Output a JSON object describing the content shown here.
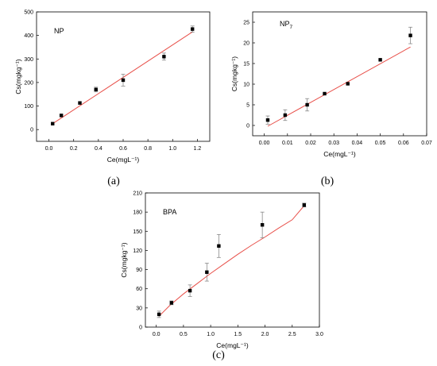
{
  "colors": {
    "fit_line": "#e8504a",
    "marker": "#000000",
    "errorbar": "#7a7a7a",
    "frame": "#000000"
  },
  "chart_data": [
    {
      "type": "scatter",
      "caption": "(a)",
      "panel_label": "NP",
      "panel_label_sub": "",
      "xlabel": "Ce(mgL⁻¹)",
      "ylabel": "Cs(mgkg⁻¹)",
      "xlim": [
        -0.1,
        1.3
      ],
      "ylim": [
        -50,
        500
      ],
      "xticks": [
        0.0,
        0.2,
        0.4,
        0.6,
        0.8,
        1.0,
        1.2
      ],
      "xtick_labels": [
        "0.0",
        "0.2",
        "0.4",
        "0.6",
        "0.8",
        "1.0",
        "1.2"
      ],
      "yticks": [
        0,
        100,
        200,
        300,
        400,
        500
      ],
      "ytick_labels": [
        "0",
        "100",
        "200",
        "300",
        "400",
        "500"
      ],
      "grid": false,
      "points": [
        {
          "x": 0.03,
          "y": 25,
          "err": 0
        },
        {
          "x": 0.1,
          "y": 60,
          "err": 0
        },
        {
          "x": 0.25,
          "y": 113,
          "err": 0
        },
        {
          "x": 0.38,
          "y": 170,
          "err": 10
        },
        {
          "x": 0.6,
          "y": 210,
          "err": 25
        },
        {
          "x": 0.93,
          "y": 310,
          "err": 15
        },
        {
          "x": 1.16,
          "y": 427,
          "err": 13
        }
      ],
      "fit": {
        "x": [
          0.03,
          1.16
        ],
        "y": [
          25,
          415
        ]
      }
    },
    {
      "type": "scatter",
      "caption": "(b)",
      "panel_label": "NP",
      "panel_label_sub": "7",
      "xlabel": "Ce(mgL⁻¹)",
      "ylabel": "Cs(mgkg⁻¹)",
      "xlim": [
        -0.005,
        0.07
      ],
      "ylim": [
        -2.5,
        27.5
      ],
      "xticks": [
        0.0,
        0.01,
        0.02,
        0.03,
        0.04,
        0.05,
        0.06,
        0.07
      ],
      "xtick_labels": [
        "0.00",
        "0.01",
        "0.02",
        "0.03",
        "0.04",
        "0.05",
        "0.06",
        "0.07"
      ],
      "yticks": [
        0,
        5,
        10,
        15,
        20,
        25
      ],
      "ytick_labels": [
        "0",
        "5",
        "10",
        "15",
        "20",
        "25"
      ],
      "grid": false,
      "points": [
        {
          "x": 0.0015,
          "y": 1.3,
          "err": 1.0
        },
        {
          "x": 0.009,
          "y": 2.5,
          "err": 1.3
        },
        {
          "x": 0.0185,
          "y": 5.0,
          "err": 1.5
        },
        {
          "x": 0.026,
          "y": 7.7,
          "err": 0
        },
        {
          "x": 0.036,
          "y": 10.1,
          "err": 0
        },
        {
          "x": 0.05,
          "y": 15.9,
          "err": 0
        },
        {
          "x": 0.063,
          "y": 21.8,
          "err": 2.0
        }
      ],
      "fit": {
        "x": [
          0.0015,
          0.063
        ],
        "y": [
          -0.2,
          19.0
        ]
      }
    },
    {
      "type": "scatter",
      "caption": "(c)",
      "panel_label": "BPA",
      "panel_label_sub": "",
      "xlabel": "Ce(mgL⁻¹)",
      "ylabel": "Cs(mgkg⁻¹)",
      "xlim": [
        -0.2,
        3.0
      ],
      "ylim": [
        0,
        210
      ],
      "xticks": [
        0.0,
        0.5,
        1.0,
        1.5,
        2.0,
        2.5,
        3.0
      ],
      "xtick_labels": [
        "0.0",
        "0.5",
        "1.0",
        "1.5",
        "2.0",
        "2.5",
        "3.0"
      ],
      "yticks": [
        0,
        30,
        60,
        90,
        120,
        150,
        180,
        210
      ],
      "ytick_labels": [
        "0",
        "30",
        "60",
        "90",
        "120",
        "150",
        "180",
        "210"
      ],
      "grid": false,
      "points": [
        {
          "x": 0.05,
          "y": 20,
          "err": 5
        },
        {
          "x": 0.28,
          "y": 38,
          "err": 3
        },
        {
          "x": 0.62,
          "y": 57,
          "err": 9
        },
        {
          "x": 0.93,
          "y": 86,
          "err": 14
        },
        {
          "x": 1.15,
          "y": 127,
          "err": 18
        },
        {
          "x": 1.95,
          "y": 160,
          "err": 20
        },
        {
          "x": 2.72,
          "y": 191,
          "err": 3
        }
      ],
      "fit": {
        "x": [
          0.05,
          0.25,
          0.5,
          0.75,
          1.0,
          1.25,
          1.5,
          1.75,
          2.0,
          2.25,
          2.5,
          2.72
        ],
        "y": [
          17,
          34,
          52,
          68,
          84,
          99,
          114,
          128,
          141,
          155,
          168,
          190
        ]
      }
    }
  ]
}
